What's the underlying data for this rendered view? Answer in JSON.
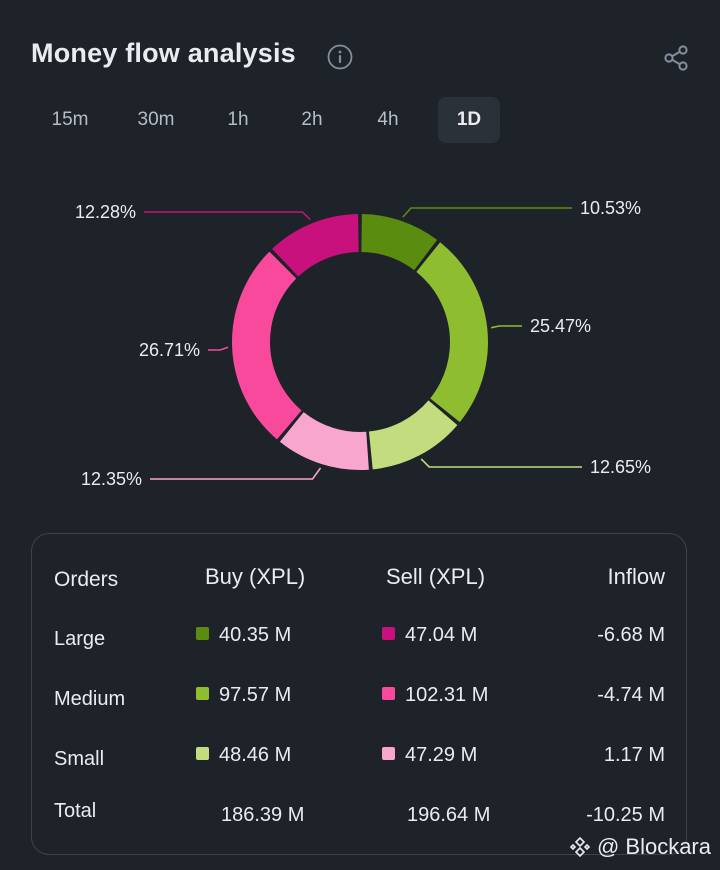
{
  "title": "Money flow analysis",
  "tabs": [
    {
      "label": "15m",
      "active": false
    },
    {
      "label": "30m",
      "active": false
    },
    {
      "label": "1h",
      "active": false
    },
    {
      "label": "2h",
      "active": false
    },
    {
      "label": "4h",
      "active": false
    },
    {
      "label": "1D",
      "active": true
    }
  ],
  "chart_data": {
    "type": "pie",
    "style": "donut",
    "slices": [
      {
        "label": "10.53%",
        "value": 10.53,
        "color": "#5a8c0f"
      },
      {
        "label": "25.47%",
        "value": 25.47,
        "color": "#8fbd30"
      },
      {
        "label": "12.65%",
        "value": 12.65,
        "color": "#c2dc7e"
      },
      {
        "label": "12.35%",
        "value": 12.35,
        "color": "#f9a6cf"
      },
      {
        "label": "26.71%",
        "value": 26.71,
        "color": "#f8499c"
      },
      {
        "label": "12.28%",
        "value": 12.28,
        "color": "#c8117d"
      }
    ]
  },
  "table": {
    "headers": {
      "orders": "Orders",
      "buy": "Buy (XPL)",
      "sell": "Sell (XPL)",
      "inflow": "Inflow"
    },
    "rows": [
      {
        "label": "Large",
        "buy": "40.35 M",
        "buy_color": "#5a8c0f",
        "sell": "47.04 M",
        "sell_color": "#c8117d",
        "inflow": "-6.68 M"
      },
      {
        "label": "Medium",
        "buy": "97.57 M",
        "buy_color": "#8fbd30",
        "sell": "102.31 M",
        "sell_color": "#f8499c",
        "inflow": "-4.74 M"
      },
      {
        "label": "Small",
        "buy": "48.46 M",
        "buy_color": "#c2dc7e",
        "sell": "47.29 M",
        "sell_color": "#f9a6cf",
        "inflow": "1.17 M"
      }
    ],
    "total": {
      "label": "Total",
      "buy": "186.39 M",
      "sell": "196.64 M",
      "inflow": "-10.25 M"
    }
  },
  "watermark": "@ Blockara"
}
